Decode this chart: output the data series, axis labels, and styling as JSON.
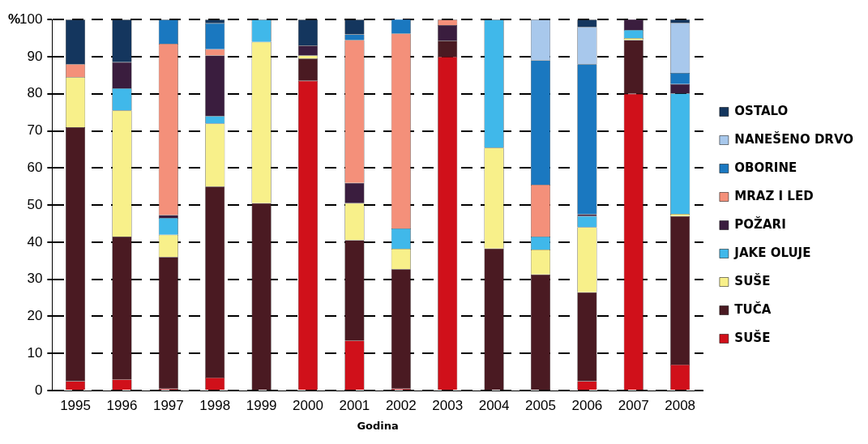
{
  "chart_data": {
    "type": "bar",
    "stacked": true,
    "xlabel": "Godina",
    "ylabel": "%",
    "categories": [
      "1995",
      "1996",
      "1997",
      "1998",
      "1999",
      "2000",
      "2001",
      "2002",
      "2003",
      "2004",
      "2005",
      "2006",
      "2007",
      "2008"
    ],
    "ylim": [
      0,
      100
    ],
    "yticks": [
      0,
      10,
      20,
      30,
      40,
      50,
      60,
      70,
      80,
      90,
      100
    ],
    "grid": "y",
    "legend": "right",
    "series": [
      {
        "name": "SUŠE",
        "color": "#d0101a",
        "values": [
          2.5,
          3,
          0.5,
          3.5,
          0,
          83.5,
          13.5,
          0.5,
          90,
          0,
          0,
          2.5,
          80,
          7
        ]
      },
      {
        "name": "TUČA",
        "color": "#4a1a22",
        "values": [
          68.5,
          38.5,
          35.5,
          51.5,
          50.5,
          6,
          27,
          32.2,
          4.3,
          38.3,
          31.3,
          24,
          14.5,
          40
        ]
      },
      {
        "name": "SUŠE",
        "color": "#f8f08a",
        "values": [
          13.5,
          34,
          6,
          17,
          43.5,
          0.8,
          10,
          5.5,
          0,
          27.2,
          6.7,
          17.5,
          0.5,
          0.6
        ]
      },
      {
        "name": "JAKE OLUJE",
        "color": "#40b8ea",
        "values": [
          0,
          6,
          4.5,
          2,
          6,
          0,
          0,
          5.5,
          0,
          34.5,
          3.5,
          3,
          2.2,
          32.5
        ]
      },
      {
        "name": "POŽARI",
        "color": "#3a1d3e",
        "values": [
          0,
          7,
          0.8,
          16.3,
          0,
          2.7,
          5.5,
          0,
          4.2,
          0,
          0,
          0.5,
          3,
          2.5
        ]
      },
      {
        "name": "MRAZ I LED",
        "color": "#f4907a",
        "values": [
          3.5,
          0,
          46.2,
          1.7,
          0,
          0,
          38.5,
          52.5,
          1.5,
          0,
          14,
          0,
          0,
          0
        ]
      },
      {
        "name": "OBORINE",
        "color": "#1a78c0",
        "values": [
          0,
          0,
          6.5,
          7,
          0,
          0,
          1.5,
          4,
          0,
          0,
          33.5,
          40.5,
          0,
          3
        ]
      },
      {
        "name": "NANEŠENO DRVO",
        "color": "#a8c8ec",
        "values": [
          0,
          0,
          0,
          0,
          0,
          0,
          0,
          0,
          0,
          0,
          11,
          10,
          0,
          13.5
        ]
      },
      {
        "name": "OSTALO",
        "color": "#14365e",
        "values": [
          12,
          11.5,
          0,
          1,
          0,
          7,
          4,
          0,
          0,
          0,
          0,
          2,
          0,
          1
        ]
      }
    ]
  }
}
